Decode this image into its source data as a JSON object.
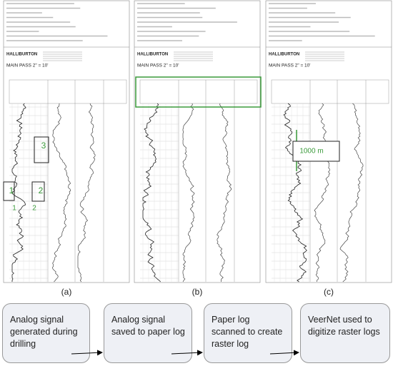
{
  "panels": [
    {
      "label": "(a)",
      "logo": "HALLIBURTON",
      "pass": "MAIN PASS  2\" = 10'",
      "markers": [
        "3",
        "1",
        "2",
        "1",
        "2"
      ]
    },
    {
      "label": "(b)",
      "logo": "HALLIBURTON",
      "pass": "MAIN PASS  2\" = 10'"
    },
    {
      "label": "(c)",
      "logo": "HALLIBURTON",
      "pass": "MAIN PASS  2\" = 10'",
      "callout": "1000 m"
    }
  ],
  "steps": [
    "Analog signal generated during drilling",
    "Analog signal saved to paper log",
    "Paper log scanned to create raster log",
    "VeerNet used to digitize raster logs"
  ]
}
